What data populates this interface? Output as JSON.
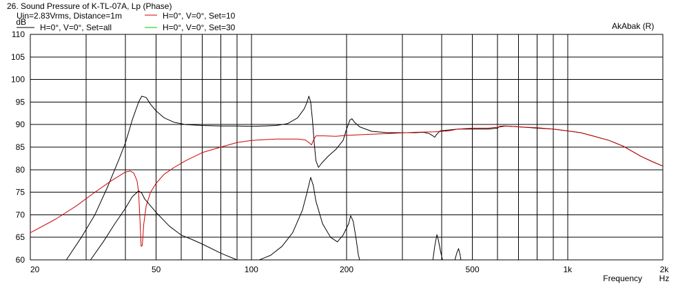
{
  "header": {
    "title": "26. Sound Pressure of K-TL-07A, Lp (Phase)",
    "conditions": "Uin=2.83Vrms, Distance=1m",
    "brand": "AkAbak (R)"
  },
  "colors": {
    "background": "#ffffff",
    "grid": "#000000",
    "series_all": "#000000",
    "series_set10": "#cc0000",
    "series_set30": "#00cc00"
  },
  "chart_data": {
    "type": "line",
    "title": "26. Sound Pressure of K-TL-07A, Lp (Phase)",
    "xlabel": "Frequency",
    "xunit": "Hz",
    "ylabel": "dB",
    "xscale": "log",
    "xlim": [
      20,
      2000
    ],
    "ylim": [
      60,
      110
    ],
    "grid": true,
    "legend_placement": "top-left",
    "x_ticks": [
      {
        "value": 20,
        "label": "20"
      },
      {
        "value": 50,
        "label": "50"
      },
      {
        "value": 100,
        "label": "100"
      },
      {
        "value": 200,
        "label": "200"
      },
      {
        "value": 500,
        "label": "500"
      },
      {
        "value": 1000,
        "label": "1k"
      },
      {
        "value": 2000,
        "label": "2k"
      }
    ],
    "x_minor_grid": [
      30,
      40,
      60,
      70,
      80,
      90,
      300,
      400,
      600,
      700,
      800,
      900
    ],
    "y_ticks": [
      60,
      65,
      70,
      75,
      80,
      85,
      90,
      95,
      100,
      105,
      110
    ],
    "series": [
      {
        "name": "H=0°, V=0°, Set=all",
        "color": "#000000",
        "points": [
          [
            26,
            60
          ],
          [
            29,
            65
          ],
          [
            32,
            70
          ],
          [
            35,
            76
          ],
          [
            38,
            82
          ],
          [
            40,
            86
          ],
          [
            42,
            91
          ],
          [
            44,
            95
          ],
          [
            45,
            96.3
          ],
          [
            46.5,
            96
          ],
          [
            48,
            94.5
          ],
          [
            50,
            93
          ],
          [
            53,
            91.5
          ],
          [
            57,
            90.5
          ],
          [
            62,
            90
          ],
          [
            70,
            89.8
          ],
          [
            80,
            89.7
          ],
          [
            90,
            89.7
          ],
          [
            100,
            89.6
          ],
          [
            110,
            89.7
          ],
          [
            120,
            89.8
          ],
          [
            130,
            90.2
          ],
          [
            140,
            91.5
          ],
          [
            147,
            93.5
          ],
          [
            150,
            95
          ],
          [
            152,
            96.3
          ],
          [
            154,
            95
          ],
          [
            156,
            91
          ],
          [
            158,
            86
          ],
          [
            160,
            82
          ],
          [
            163,
            80.5
          ],
          [
            167,
            81.5
          ],
          [
            175,
            83
          ],
          [
            185,
            84.5
          ],
          [
            195,
            86.5
          ],
          [
            200,
            89
          ],
          [
            205,
            91
          ],
          [
            208,
            91.3
          ],
          [
            212,
            90.5
          ],
          [
            220,
            89.5
          ],
          [
            240,
            88.5
          ],
          [
            270,
            88.2
          ],
          [
            300,
            88.2
          ],
          [
            330,
            88.2
          ],
          [
            350,
            88.3
          ],
          [
            365,
            88
          ],
          [
            375,
            87.5
          ],
          [
            380,
            87.2
          ],
          [
            385,
            87.8
          ],
          [
            395,
            88.6
          ],
          [
            420,
            88.8
          ],
          [
            450,
            89
          ],
          [
            500,
            89
          ],
          [
            560,
            89
          ],
          [
            600,
            89.2
          ],
          [
            610,
            89.6
          ],
          [
            630,
            89.7
          ],
          [
            660,
            89.6
          ],
          [
            700,
            89.5
          ],
          [
            800,
            89.2
          ],
          [
            900,
            89
          ],
          [
            1000,
            88.6
          ],
          [
            1100,
            88.2
          ],
          [
            1200,
            87.5
          ],
          [
            1350,
            86.5
          ],
          [
            1500,
            85.2
          ],
          [
            1700,
            83
          ],
          [
            1850,
            81.8
          ],
          [
            2000,
            80.8
          ]
        ]
      },
      {
        "name": "H=0°, V=0°, Set=10",
        "color": "#cc0000",
        "points": [
          [
            20,
            66
          ],
          [
            24,
            69
          ],
          [
            28,
            72
          ],
          [
            32,
            75
          ],
          [
            36,
            77.5
          ],
          [
            40,
            79.5
          ],
          [
            41.5,
            79.7
          ],
          [
            42.5,
            79.2
          ],
          [
            43.5,
            77.5
          ],
          [
            44,
            75
          ],
          [
            44.5,
            68
          ],
          [
            44.8,
            63
          ],
          [
            45.2,
            63.2
          ],
          [
            45.7,
            68
          ],
          [
            46.5,
            72
          ],
          [
            48,
            75
          ],
          [
            50,
            77
          ],
          [
            53,
            79
          ],
          [
            57,
            80.5
          ],
          [
            62,
            82
          ],
          [
            70,
            83.8
          ],
          [
            80,
            85
          ],
          [
            90,
            86
          ],
          [
            100,
            86.5
          ],
          [
            120,
            86.8
          ],
          [
            140,
            86.8
          ],
          [
            148,
            86.6
          ],
          [
            152,
            86
          ],
          [
            155,
            85.5
          ],
          [
            157,
            86.5
          ],
          [
            160,
            87.5
          ],
          [
            170,
            87.5
          ],
          [
            185,
            87.4
          ],
          [
            200,
            87.6
          ],
          [
            230,
            87.8
          ],
          [
            270,
            88
          ],
          [
            330,
            88.3
          ],
          [
            380,
            88.4
          ],
          [
            420,
            88.6
          ],
          [
            450,
            89
          ],
          [
            500,
            89.2
          ],
          [
            560,
            89.2
          ],
          [
            600,
            89.4
          ],
          [
            640,
            89.7
          ],
          [
            700,
            89.5
          ],
          [
            800,
            89.3
          ],
          [
            900,
            89
          ],
          [
            1000,
            88.6
          ],
          [
            1100,
            88.2
          ],
          [
            1200,
            87.5
          ],
          [
            1350,
            86.5
          ],
          [
            1500,
            85.2
          ],
          [
            1700,
            83
          ],
          [
            1850,
            81.8
          ],
          [
            2000,
            80.8
          ]
        ]
      },
      {
        "name": "H=0°, V=0°, Set=30",
        "color": "#00cc00",
        "points": []
      },
      {
        "name": "",
        "color": "#000000",
        "points": [
          [
            31,
            60
          ],
          [
            34,
            64
          ],
          [
            37,
            68
          ],
          [
            40,
            71.5
          ],
          [
            42,
            74
          ],
          [
            44,
            75.3
          ],
          [
            45,
            74.8
          ],
          [
            46,
            73.5
          ],
          [
            50,
            70.5
          ],
          [
            55,
            67.5
          ],
          [
            60,
            65.5
          ],
          [
            65,
            64.5
          ],
          [
            70,
            63.5
          ],
          [
            80,
            61.5
          ],
          [
            90,
            60
          ]
        ]
      },
      {
        "name": "",
        "color": "#000000",
        "points": [
          [
            106,
            60
          ],
          [
            115,
            61
          ],
          [
            125,
            63
          ],
          [
            135,
            66
          ],
          [
            145,
            71
          ],
          [
            150,
            75
          ],
          [
            154,
            78.3
          ],
          [
            157,
            76.5
          ],
          [
            160,
            73
          ],
          [
            168,
            68
          ],
          [
            178,
            65
          ],
          [
            187,
            64
          ],
          [
            195,
            65.5
          ],
          [
            203,
            68
          ],
          [
            206,
            69.8
          ],
          [
            210,
            68.5
          ],
          [
            214,
            65
          ],
          [
            218,
            61
          ],
          [
            220,
            60
          ]
        ]
      },
      {
        "name": "",
        "color": "#000000",
        "points": [
          [
            375,
            60
          ],
          [
            380,
            63
          ],
          [
            386,
            65.6
          ],
          [
            390,
            64.5
          ],
          [
            396,
            62
          ],
          [
            402,
            60
          ]
        ]
      },
      {
        "name": "",
        "color": "#000000",
        "points": [
          [
            440,
            60
          ],
          [
            446,
            61.5
          ],
          [
            452,
            62.5
          ],
          [
            456,
            61.5
          ],
          [
            460,
            60
          ]
        ]
      }
    ]
  }
}
